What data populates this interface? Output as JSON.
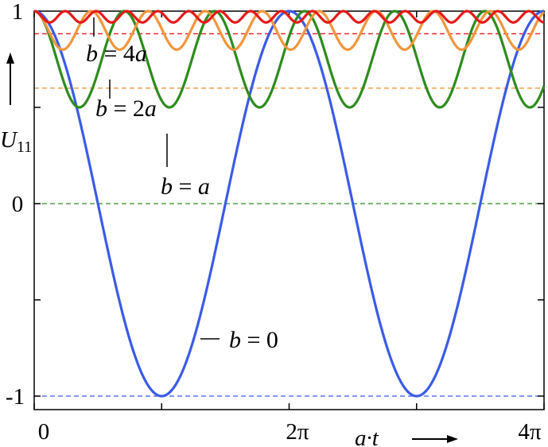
{
  "chart_data": {
    "type": "line",
    "x_range": [
      0,
      12.566
    ],
    "y_range": [
      -1,
      1
    ],
    "y_ticks": [
      1,
      0,
      -1
    ],
    "y_tick_labels": [
      "1",
      "0",
      "-1"
    ],
    "x_ticks": [
      0,
      6.2832,
      12.5664
    ],
    "x_tick_labels": [
      "0",
      "2π",
      "4π"
    ],
    "xlabel": "a·t",
    "ylabel": "U11",
    "ylabel_base": "U",
    "ylabel_sub": "11",
    "series": [
      {
        "name": "b = 0",
        "name_parts": [
          "b",
          " = 0"
        ],
        "b_over_a": 0,
        "color": "#3b5be6",
        "floor": -1,
        "floor_color": "#3b5be6"
      },
      {
        "name": "b = a",
        "name_parts": [
          "b",
          " = ",
          "a"
        ],
        "b_over_a": 1,
        "color": "#2e8b1e",
        "floor": 0,
        "floor_color": "#2e8b1e"
      },
      {
        "name": "b = 2a",
        "name_parts": [
          "b",
          " = 2",
          "a"
        ],
        "b_over_a": 2,
        "color": "#f0963c",
        "floor": 0.6,
        "floor_color": "#f0963c"
      },
      {
        "name": "b = 4a",
        "name_parts": [
          "b",
          " = 4",
          "a"
        ],
        "b_over_a": 4,
        "color": "#e41a1a",
        "floor": 0.8824,
        "floor_color": "#e41a1a"
      }
    ]
  }
}
